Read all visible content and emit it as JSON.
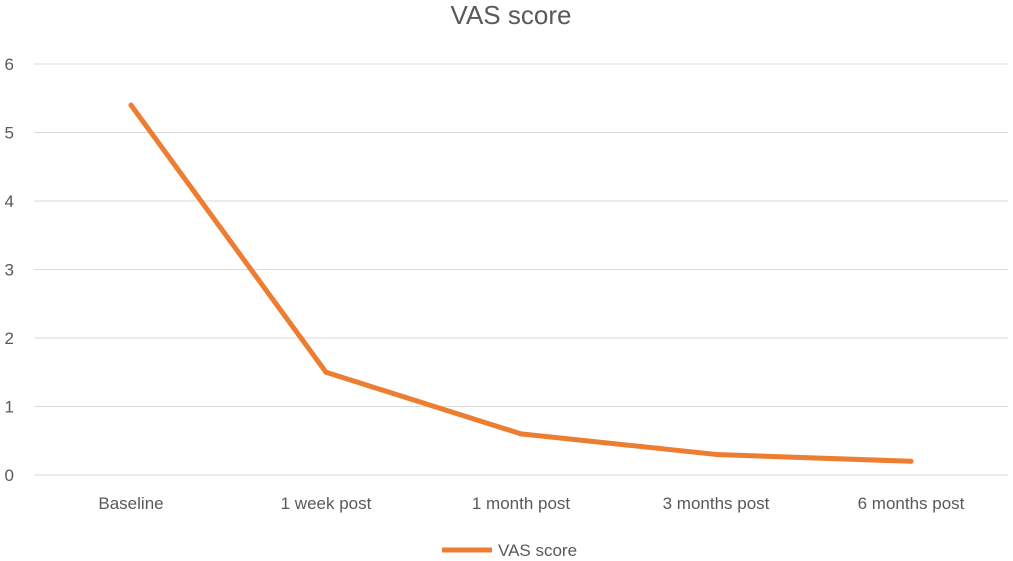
{
  "chart_data": {
    "type": "line",
    "title": "VAS score",
    "xlabel": "",
    "ylabel": "",
    "categories": [
      "Baseline",
      "1 week post",
      "1 month post",
      "3 months post",
      "6 months post"
    ],
    "series": [
      {
        "name": "VAS score",
        "values": [
          5.4,
          1.5,
          0.6,
          0.3,
          0.2
        ],
        "color": "#ED7D31"
      }
    ],
    "ylim": [
      0,
      6
    ],
    "yticks": [
      "0",
      "1",
      "2",
      "3",
      "4",
      "5",
      "6"
    ],
    "grid": true,
    "legend_position": "bottom"
  }
}
